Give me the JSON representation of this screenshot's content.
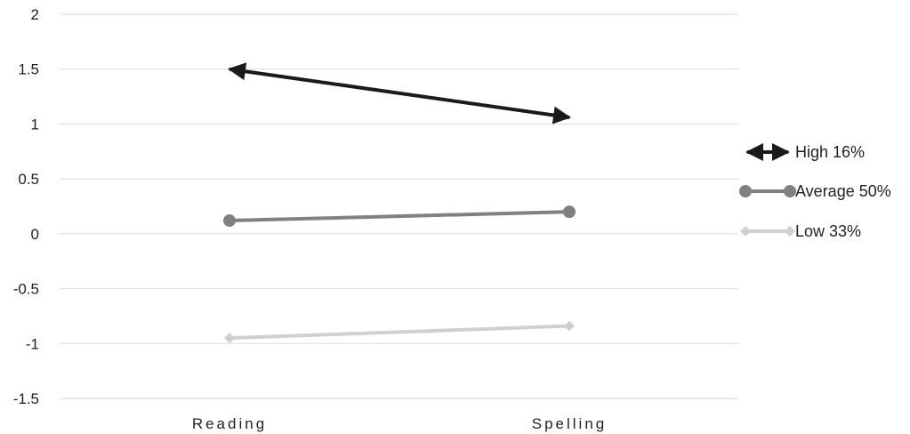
{
  "chart_data": {
    "type": "line",
    "categories": [
      "Reading",
      "Spelling"
    ],
    "series": [
      {
        "name": "High 16%",
        "values": [
          1.5,
          1.06
        ],
        "color": "#1a1a1a",
        "marker": "arrow"
      },
      {
        "name": "Average 50%",
        "values": [
          0.12,
          0.2
        ],
        "color": "#808080",
        "marker": "circle"
      },
      {
        "name": "Low 33%",
        "values": [
          -0.95,
          -0.84
        ],
        "color": "#d0d0d0",
        "marker": "diamond"
      }
    ],
    "ylim": [
      -1.5,
      2
    ],
    "yticks": [
      "2",
      "1.5",
      "1",
      "0.5",
      "0",
      "-0.5",
      "-1",
      "-1.5"
    ],
    "ytick_values": [
      2,
      1.5,
      1,
      0.5,
      0,
      -0.5,
      -1,
      -1.5
    ],
    "grid": true,
    "legend_position": "right",
    "title": "",
    "xlabel": "",
    "ylabel": ""
  }
}
